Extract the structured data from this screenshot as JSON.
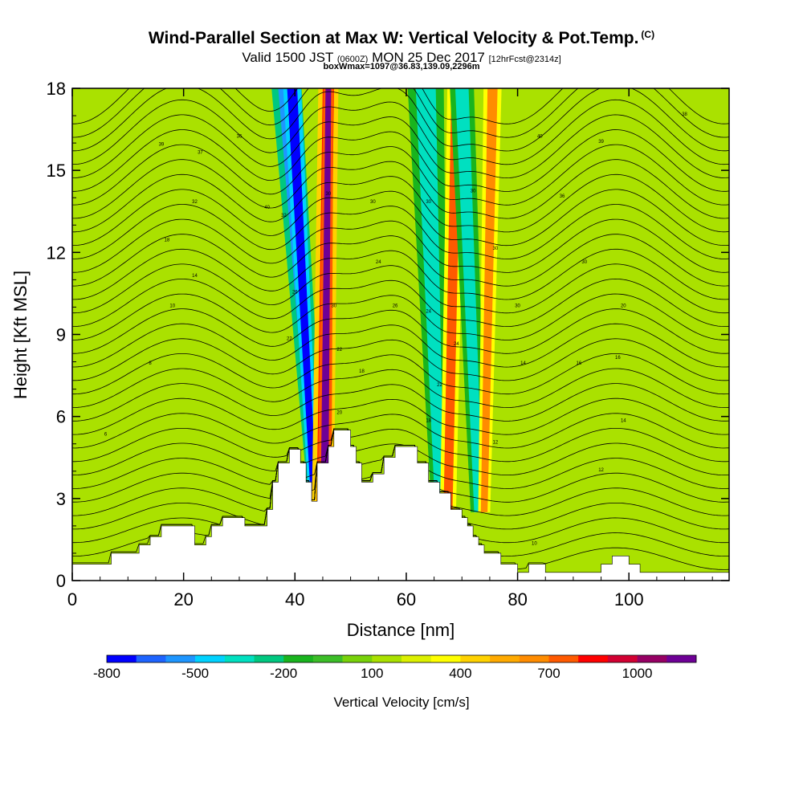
{
  "header": {
    "title": "Wind-Parallel Section at Max W: Vertical Velocity & Pot.Temp.",
    "copyright": "(C)",
    "valid_prefix": "Valid 1500 JST",
    "valid_zulu": "(0600Z)",
    "valid_date": "MON 25 Dec 2017",
    "forecast": "[12hrFcst@2314z]",
    "box_line": "boxWmax=1097@36.83,139.09,2296m"
  },
  "chart_data": {
    "type": "heatmap",
    "title": "Wind-Parallel Section at Max W: Vertical Velocity & Pot.Temp.",
    "xlabel": "Distance [nm]",
    "ylabel": "Height [Kft MSL]",
    "xlim": [
      0,
      118
    ],
    "ylim": [
      0,
      18
    ],
    "x_ticks": [
      0,
      20,
      40,
      60,
      80,
      100
    ],
    "y_ticks": [
      0,
      3,
      6,
      9,
      12,
      15,
      18
    ],
    "colorbar": {
      "label": "Vertical Velocity [cm/s]",
      "tick_values": [
        -800,
        -500,
        -200,
        100,
        400,
        700,
        1000
      ],
      "levels": [
        -900,
        -800,
        -700,
        -600,
        -500,
        -400,
        -300,
        -200,
        -100,
        0,
        100,
        200,
        300,
        400,
        500,
        600,
        700,
        800,
        900,
        1000,
        1100
      ],
      "colors": [
        "#0000ff",
        "#1e64ff",
        "#1e96ff",
        "#00d2ff",
        "#00e0c0",
        "#00c880",
        "#19b41e",
        "#3cbe28",
        "#78d20a",
        "#aae100",
        "#dcf000",
        "#ffff00",
        "#ffd200",
        "#ffaa00",
        "#ff8c00",
        "#ff5a00",
        "#ff0000",
        "#d20032",
        "#960064",
        "#6e0096"
      ]
    },
    "terrain": [
      [
        0,
        0.6
      ],
      [
        7,
        0.6
      ],
      [
        7,
        1.0
      ],
      [
        12,
        1.0
      ],
      [
        12,
        1.3
      ],
      [
        14,
        1.3
      ],
      [
        14,
        1.6
      ],
      [
        16,
        1.6
      ],
      [
        16,
        2.0
      ],
      [
        22,
        2.0
      ],
      [
        22,
        1.3
      ],
      [
        24,
        1.3
      ],
      [
        24,
        1.6
      ],
      [
        25,
        1.6
      ],
      [
        25,
        2.0
      ],
      [
        27,
        2.0
      ],
      [
        27,
        2.3
      ],
      [
        31,
        2.3
      ],
      [
        31,
        2.0
      ],
      [
        35,
        2.0
      ],
      [
        35,
        2.6
      ],
      [
        36,
        2.6
      ],
      [
        36,
        3.6
      ],
      [
        37,
        3.6
      ],
      [
        37,
        4.3
      ],
      [
        39,
        4.3
      ],
      [
        39,
        4.8
      ],
      [
        41,
        4.8
      ],
      [
        41,
        4.3
      ],
      [
        42,
        4.3
      ],
      [
        42,
        3.6
      ],
      [
        43,
        3.6
      ],
      [
        43,
        2.9
      ],
      [
        44,
        2.9
      ],
      [
        44,
        4.3
      ],
      [
        46,
        4.3
      ],
      [
        46,
        4.9
      ],
      [
        47,
        4.9
      ],
      [
        47,
        5.5
      ],
      [
        50,
        5.5
      ],
      [
        50,
        4.9
      ],
      [
        51,
        4.9
      ],
      [
        51,
        4.3
      ],
      [
        52,
        4.3
      ],
      [
        52,
        3.6
      ],
      [
        54,
        3.6
      ],
      [
        54,
        3.9
      ],
      [
        56,
        3.9
      ],
      [
        56,
        4.5
      ],
      [
        58,
        4.5
      ],
      [
        58,
        4.9
      ],
      [
        62,
        4.9
      ],
      [
        62,
        4.3
      ],
      [
        64,
        4.3
      ],
      [
        64,
        3.6
      ],
      [
        66,
        3.6
      ],
      [
        66,
        3.2
      ],
      [
        68,
        3.2
      ],
      [
        68,
        2.6
      ],
      [
        70,
        2.6
      ],
      [
        70,
        2.3
      ],
      [
        71,
        2.3
      ],
      [
        71,
        2.0
      ],
      [
        72,
        2.0
      ],
      [
        72,
        1.6
      ],
      [
        73,
        1.6
      ],
      [
        73,
        1.3
      ],
      [
        74,
        1.3
      ],
      [
        74,
        1.0
      ],
      [
        77,
        1.0
      ],
      [
        77,
        0.6
      ],
      [
        80,
        0.6
      ],
      [
        80,
        0.3
      ],
      [
        82,
        0.3
      ],
      [
        82,
        0.6
      ],
      [
        85,
        0.6
      ],
      [
        85,
        0.3
      ],
      [
        95,
        0.3
      ],
      [
        95,
        0.6
      ],
      [
        97,
        0.6
      ],
      [
        97,
        0.9
      ],
      [
        100,
        0.9
      ],
      [
        100,
        0.6
      ],
      [
        102,
        0.6
      ],
      [
        102,
        0.3
      ],
      [
        118,
        0.3
      ]
    ],
    "velocity_bands": [
      {
        "x_top": 38.5,
        "x_bottom": 44.0,
        "half_width_top": 1.5,
        "half_width_bottom": 0.8,
        "value": -700
      },
      {
        "x_top": 39.5,
        "x_bottom": 43.5,
        "half_width_top": 0.9,
        "half_width_bottom": 0.5,
        "value": -900
      },
      {
        "x_top": 46.0,
        "x_bottom": 45.0,
        "half_width_top": 1.0,
        "half_width_bottom": 1.1,
        "value": 700
      },
      {
        "x_top": 46.0,
        "x_bottom": 45.3,
        "half_width_top": 0.5,
        "half_width_bottom": 0.7,
        "value": 1000
      },
      {
        "x_top": 63.5,
        "x_bottom": 66.0,
        "half_width_top": 1.8,
        "half_width_bottom": 0.8,
        "value": -500
      },
      {
        "x_top": 69.0,
        "x_bottom": 67.5,
        "half_width_top": 0.9,
        "half_width_bottom": 0.8,
        "value": 600
      },
      {
        "x_top": 70.0,
        "x_bottom": 73.0,
        "half_width_top": 1.2,
        "half_width_bottom": 0.8,
        "value": -500
      },
      {
        "x_top": 75.5,
        "x_bottom": 74.0,
        "half_width_top": 0.9,
        "half_width_bottom": 0.6,
        "value": 500
      }
    ],
    "theta_contour_labels": [
      {
        "x": 6,
        "y": 5.3,
        "text": "6"
      },
      {
        "x": 14,
        "y": 7.9,
        "text": "8"
      },
      {
        "x": 18,
        "y": 10.0,
        "text": "10"
      },
      {
        "x": 22,
        "y": 11.1,
        "text": "14"
      },
      {
        "x": 17,
        "y": 12.4,
        "text": "18"
      },
      {
        "x": 22,
        "y": 13.8,
        "text": "32"
      },
      {
        "x": 23,
        "y": 15.6,
        "text": "37"
      },
      {
        "x": 30,
        "y": 16.2,
        "text": "36"
      },
      {
        "x": 16,
        "y": 15.9,
        "text": "39"
      },
      {
        "x": 35,
        "y": 13.6,
        "text": "40"
      },
      {
        "x": 38,
        "y": 13.3,
        "text": "32"
      },
      {
        "x": 40,
        "y": 10.5,
        "text": "26"
      },
      {
        "x": 39,
        "y": 8.8,
        "text": "22"
      },
      {
        "x": 46,
        "y": 14.1,
        "text": "30"
      },
      {
        "x": 47,
        "y": 10.0,
        "text": "30"
      },
      {
        "x": 48,
        "y": 8.4,
        "text": "22"
      },
      {
        "x": 48,
        "y": 6.1,
        "text": "20"
      },
      {
        "x": 54,
        "y": 13.8,
        "text": "30"
      },
      {
        "x": 55,
        "y": 11.6,
        "text": "24"
      },
      {
        "x": 58,
        "y": 10.0,
        "text": "26"
      },
      {
        "x": 52,
        "y": 7.6,
        "text": "18"
      },
      {
        "x": 64,
        "y": 13.8,
        "text": "30"
      },
      {
        "x": 64,
        "y": 9.8,
        "text": "24"
      },
      {
        "x": 66,
        "y": 7.1,
        "text": "22"
      },
      {
        "x": 64,
        "y": 5.8,
        "text": "18"
      },
      {
        "x": 69,
        "y": 8.6,
        "text": "24"
      },
      {
        "x": 72,
        "y": 14.2,
        "text": "30"
      },
      {
        "x": 76,
        "y": 12.1,
        "text": "30"
      },
      {
        "x": 80,
        "y": 10.0,
        "text": "30"
      },
      {
        "x": 81,
        "y": 7.9,
        "text": "14"
      },
      {
        "x": 76,
        "y": 5.0,
        "text": "12"
      },
      {
        "x": 84,
        "y": 16.2,
        "text": "40"
      },
      {
        "x": 88,
        "y": 14.0,
        "text": "36"
      },
      {
        "x": 92,
        "y": 11.6,
        "text": "30"
      },
      {
        "x": 95,
        "y": 16.0,
        "text": "39"
      },
      {
        "x": 99,
        "y": 10.0,
        "text": "20"
      },
      {
        "x": 91,
        "y": 7.9,
        "text": "16"
      },
      {
        "x": 98,
        "y": 8.1,
        "text": "16"
      },
      {
        "x": 99,
        "y": 5.8,
        "text": "14"
      },
      {
        "x": 95,
        "y": 4.0,
        "text": "12"
      },
      {
        "x": 83,
        "y": 1.3,
        "text": "10"
      },
      {
        "x": 110,
        "y": 17.0,
        "text": "38"
      }
    ]
  }
}
